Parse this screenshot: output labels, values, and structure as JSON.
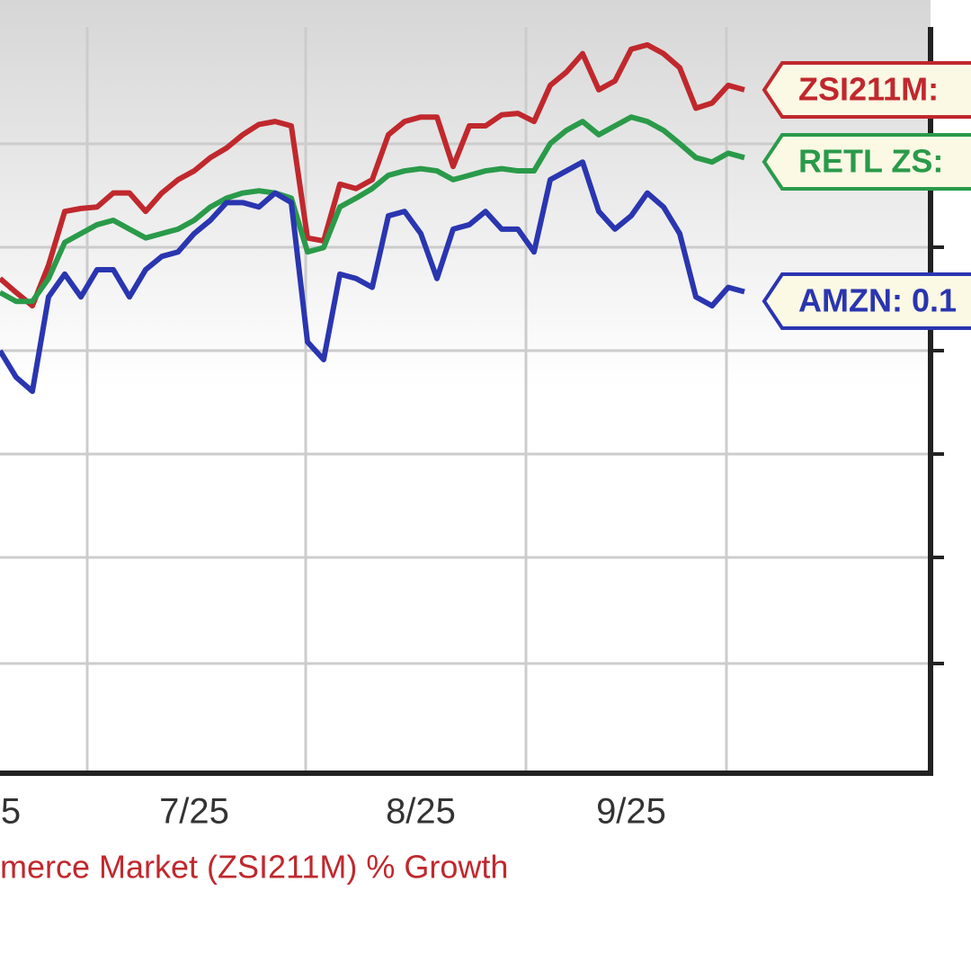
{
  "chart_data": {
    "type": "line",
    "x_axis_label": "merce Market (ZSI211M) % Growth",
    "categories": [
      "5",
      null,
      null,
      null,
      null,
      null,
      null,
      null,
      null,
      null,
      null,
      null,
      "7/25",
      null,
      null,
      null,
      null,
      null,
      null,
      null,
      null,
      null,
      null,
      null,
      null,
      null,
      "8/25",
      null,
      null,
      null,
      null,
      null,
      null,
      null,
      null,
      null,
      null,
      null,
      null,
      "9/25",
      null,
      null,
      null,
      null,
      null,
      null,
      null
    ],
    "ylim": [
      0,
      100
    ],
    "grid": true,
    "series": [
      {
        "name": "ZSI211M:",
        "color": "#c0282d",
        "values": [
          67.1,
          65.2,
          63.4,
          68.9,
          76.2,
          76.6,
          76.8,
          78.7,
          78.7,
          76.2,
          78.7,
          80.5,
          81.7,
          83.5,
          84.8,
          86.6,
          88.0,
          88.4,
          87.8,
          72.6,
          72.2,
          79.9,
          79.3,
          80.5,
          86.6,
          88.4,
          89.0,
          89.0,
          82.3,
          87.8,
          87.8,
          89.3,
          89.5,
          88.4,
          93.3,
          95.1,
          97.6,
          92.7,
          93.9,
          98.2,
          98.8,
          97.6,
          95.7,
          90.2,
          90.9,
          93.3,
          92.7
        ]
      },
      {
        "name": "RETL ZS:",
        "color": "#2a9a4a",
        "values": [
          65.2,
          64.0,
          64.0,
          67.1,
          72.0,
          73.2,
          74.4,
          75.0,
          73.8,
          72.6,
          73.2,
          73.8,
          75.0,
          76.8,
          78.0,
          78.7,
          79.0,
          78.7,
          78.0,
          70.7,
          71.3,
          76.8,
          78.0,
          79.3,
          81.1,
          81.7,
          82.0,
          81.7,
          80.5,
          81.1,
          81.7,
          82.0,
          81.7,
          81.7,
          85.4,
          87.2,
          88.4,
          86.6,
          87.8,
          89.0,
          88.4,
          87.2,
          85.4,
          83.5,
          82.9,
          84.1,
          83.5
        ]
      },
      {
        "name": "AMZN: 0.1",
        "color": "#2a35b0",
        "values": [
          57.3,
          53.7,
          51.8,
          64.6,
          67.7,
          64.6,
          68.3,
          68.3,
          64.6,
          68.3,
          70.1,
          70.7,
          73.2,
          75.0,
          77.4,
          77.4,
          76.8,
          78.7,
          77.4,
          58.5,
          56.1,
          67.7,
          67.1,
          65.9,
          75.6,
          76.2,
          73.2,
          67.1,
          73.8,
          74.4,
          76.2,
          73.8,
          73.8,
          70.7,
          80.5,
          81.7,
          82.9,
          76.2,
          73.8,
          75.6,
          78.7,
          76.8,
          73.2,
          64.6,
          63.4,
          65.9,
          65.3
        ]
      }
    ]
  }
}
